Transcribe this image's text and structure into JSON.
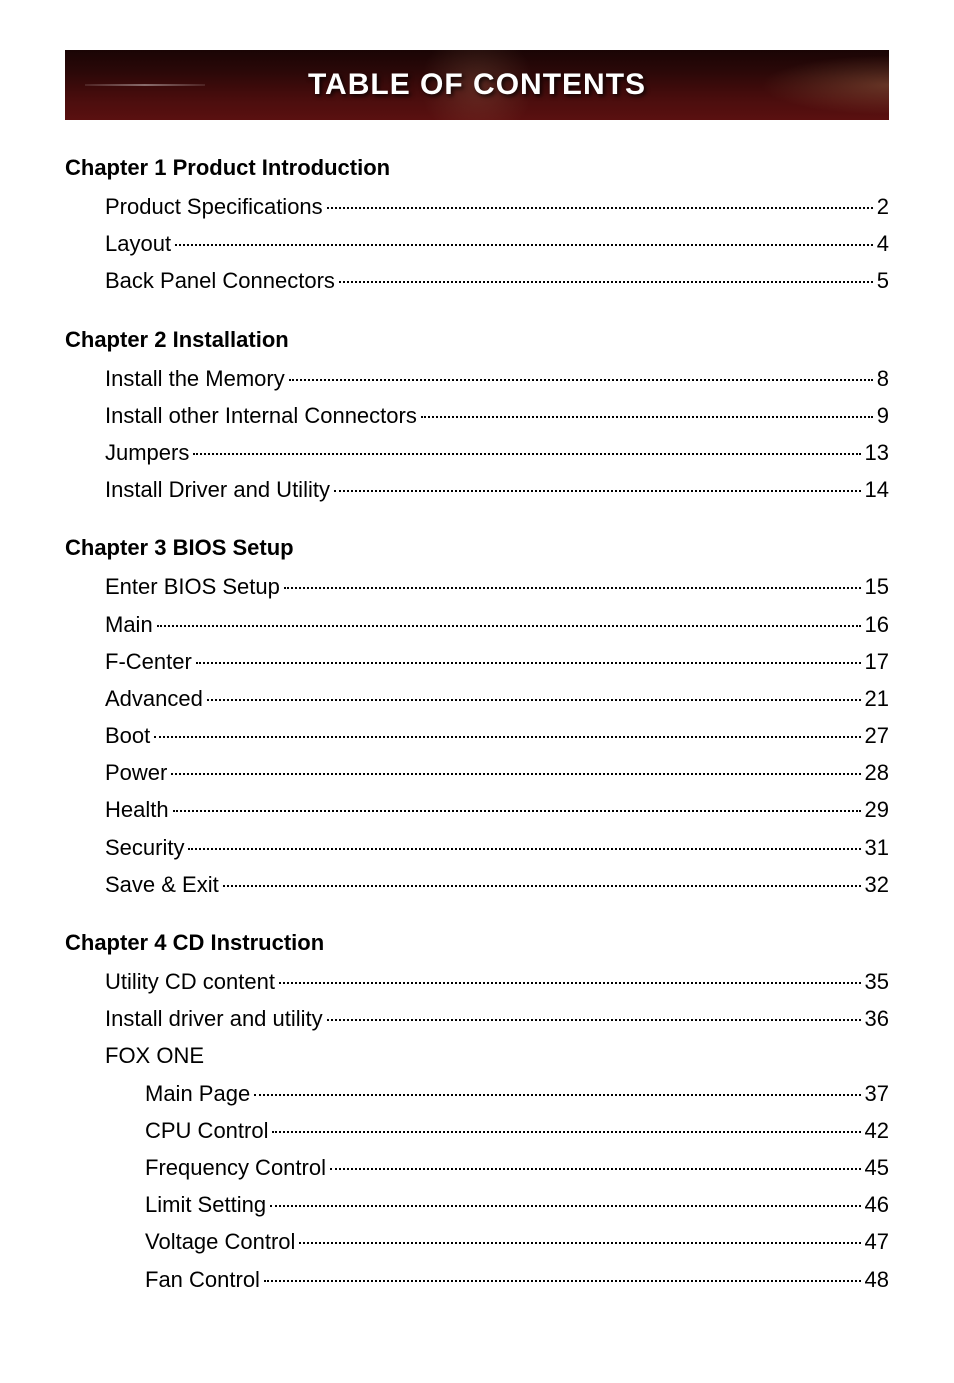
{
  "banner": {
    "title": "TABLE OF CONTENTS",
    "background_color": "#2a0808",
    "text_color": "#ffffff",
    "title_fontsize": 30
  },
  "chapters": [
    {
      "title": "Chapter 1 Product Introduction",
      "entries": [
        {
          "label": "Product Specifications",
          "page": "2"
        },
        {
          "label": "Layout",
          "page": "4"
        },
        {
          "label": "Back Panel Connectors",
          "page": "5"
        }
      ]
    },
    {
      "title": "Chapter 2 Installation",
      "entries": [
        {
          "label": "Install the Memory",
          "page": "8"
        },
        {
          "label": "Install other Internal Connectors",
          "page": "9"
        },
        {
          "label": "Jumpers",
          "page": "13"
        },
        {
          "label": "Install Driver and Utility",
          "page": "14"
        }
      ]
    },
    {
      "title": "Chapter 3 BIOS Setup",
      "entries": [
        {
          "label": "Enter BIOS Setup",
          "page": "15"
        },
        {
          "label": "Main",
          "page": "16"
        },
        {
          "label": "F-Center",
          "page": "17"
        },
        {
          "label": "Advanced",
          "page": "21"
        },
        {
          "label": "Boot",
          "page": "27"
        },
        {
          "label": "Power",
          "page": "28"
        },
        {
          "label": "Health",
          "page": "29"
        },
        {
          "label": "Security",
          "page": "31"
        },
        {
          "label": "Save & Exit",
          "page": "32"
        }
      ]
    },
    {
      "title": "Chapter 4  CD Instruction",
      "entries": [
        {
          "label": "Utility CD content",
          "page": "35"
        },
        {
          "label": "Install driver and utility",
          "page": "36"
        }
      ],
      "subsections": [
        {
          "heading": "FOX ONE",
          "entries": [
            {
              "label": "Main Page",
              "page": "37"
            },
            {
              "label": "CPU Control",
              "page": "42"
            },
            {
              "label": "Frequency Control",
              "page": "45"
            },
            {
              "label": "Limit Setting",
              "page": "46"
            },
            {
              "label": "Voltage Control",
              "page": "47"
            },
            {
              "label": "Fan Control",
              "page": "48"
            }
          ]
        }
      ]
    }
  ],
  "styling": {
    "body_font": "Arial",
    "body_fontsize": 22,
    "heading_fontsize": 22,
    "heading_weight": "bold",
    "text_color": "#000000",
    "background_color": "#ffffff",
    "entry_indent": 40,
    "sub_entry_indent": 80,
    "line_height": 1.6,
    "dot_leader_color": "#000000"
  }
}
